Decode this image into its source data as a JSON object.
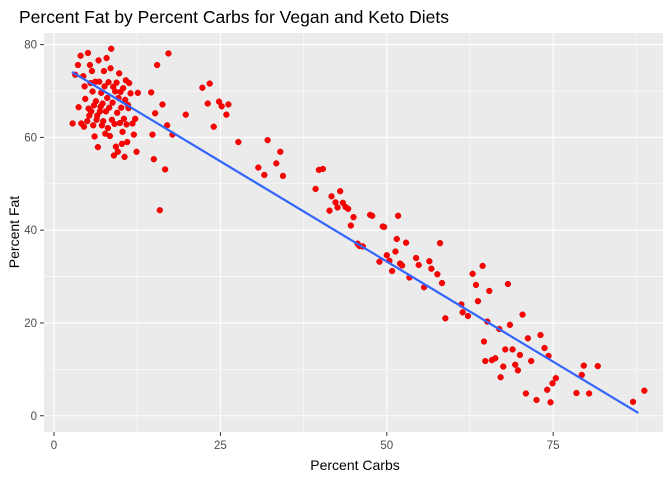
{
  "chart_data": {
    "type": "scatter",
    "title": "Percent Fat by Percent Carbs for Vegan and Keto Diets",
    "xlabel": "Percent Carbs",
    "ylabel": "Percent Fat",
    "xlim": [
      -1.5,
      91.5
    ],
    "ylim": [
      -3.5,
      82.5
    ],
    "xticks": [
      0,
      25,
      50,
      75
    ],
    "yticks": [
      0,
      20,
      40,
      60,
      80
    ],
    "grid": true,
    "points": [
      [
        2.8,
        63.0
      ],
      [
        3.2,
        73.5
      ],
      [
        3.6,
        75.6
      ],
      [
        3.7,
        66.5
      ],
      [
        4.0,
        77.6
      ],
      [
        4.1,
        63.0
      ],
      [
        4.4,
        73.2
      ],
      [
        4.5,
        62.3
      ],
      [
        4.6,
        71.0
      ],
      [
        4.7,
        68.3
      ],
      [
        5.0,
        63.5
      ],
      [
        5.1,
        78.2
      ],
      [
        5.2,
        66.2
      ],
      [
        5.3,
        64.7
      ],
      [
        5.4,
        75.6
      ],
      [
        5.5,
        71.7
      ],
      [
        5.6,
        65.6
      ],
      [
        5.7,
        74.3
      ],
      [
        5.8,
        69.9
      ],
      [
        5.9,
        62.6
      ],
      [
        6.0,
        66.9
      ],
      [
        6.1,
        60.2
      ],
      [
        6.2,
        72.0
      ],
      [
        6.3,
        67.8
      ],
      [
        6.4,
        63.8
      ],
      [
        6.5,
        64.7
      ],
      [
        6.6,
        57.9
      ],
      [
        6.7,
        76.6
      ],
      [
        6.8,
        72.0
      ],
      [
        6.9,
        65.6
      ],
      [
        7.0,
        66.6
      ],
      [
        7.1,
        69.6
      ],
      [
        7.2,
        62.6
      ],
      [
        7.3,
        67.3
      ],
      [
        7.4,
        63.5
      ],
      [
        7.5,
        74.3
      ],
      [
        7.6,
        71.0
      ],
      [
        7.7,
        60.8
      ],
      [
        7.8,
        65.6
      ],
      [
        7.9,
        77.1
      ],
      [
        8.0,
        68.5
      ],
      [
        8.1,
        62.0
      ],
      [
        8.2,
        71.9
      ],
      [
        8.3,
        66.4
      ],
      [
        8.4,
        60.3
      ],
      [
        8.5,
        74.9
      ],
      [
        8.6,
        79.1
      ],
      [
        8.7,
        63.8
      ],
      [
        8.8,
        67.5
      ],
      [
        8.9,
        70.9
      ],
      [
        9.0,
        56.1
      ],
      [
        9.1,
        62.9
      ],
      [
        9.2,
        69.9
      ],
      [
        9.3,
        58.0
      ],
      [
        9.4,
        71.8
      ],
      [
        9.5,
        65.3
      ],
      [
        9.6,
        56.9
      ],
      [
        9.7,
        68.5
      ],
      [
        9.8,
        73.8
      ],
      [
        9.9,
        63.1
      ],
      [
        10.0,
        69.8
      ],
      [
        10.1,
        66.4
      ],
      [
        10.2,
        58.6
      ],
      [
        10.3,
        61.2
      ],
      [
        10.4,
        70.6
      ],
      [
        10.5,
        64.0
      ],
      [
        10.6,
        55.8
      ],
      [
        10.7,
        68.1
      ],
      [
        10.8,
        72.3
      ],
      [
        10.9,
        62.8
      ],
      [
        11.0,
        59.0
      ],
      [
        11.1,
        67.0
      ],
      [
        11.2,
        66.3
      ],
      [
        11.3,
        71.7
      ],
      [
        11.5,
        69.5
      ],
      [
        11.8,
        63.0
      ],
      [
        12.0,
        60.6
      ],
      [
        12.2,
        64.0
      ],
      [
        12.4,
        56.9
      ],
      [
        12.6,
        69.6
      ],
      [
        14.6,
        69.7
      ],
      [
        14.8,
        60.6
      ],
      [
        15.0,
        55.3
      ],
      [
        15.2,
        65.2
      ],
      [
        15.5,
        75.6
      ],
      [
        15.9,
        44.3
      ],
      [
        16.3,
        67.1
      ],
      [
        16.7,
        53.1
      ],
      [
        17.0,
        62.6
      ],
      [
        17.2,
        78.1
      ],
      [
        17.8,
        60.6
      ],
      [
        19.8,
        64.9
      ],
      [
        22.3,
        70.7
      ],
      [
        23.1,
        67.3
      ],
      [
        23.4,
        71.6
      ],
      [
        24.0,
        62.3
      ],
      [
        24.8,
        67.7
      ],
      [
        25.2,
        66.7
      ],
      [
        25.9,
        64.9
      ],
      [
        26.2,
        67.1
      ],
      [
        27.7,
        59.0
      ],
      [
        30.7,
        53.5
      ],
      [
        31.6,
        51.9
      ],
      [
        32.1,
        59.4
      ],
      [
        33.4,
        54.4
      ],
      [
        34.0,
        56.9
      ],
      [
        34.4,
        51.7
      ],
      [
        39.3,
        48.9
      ],
      [
        39.8,
        53.0
      ],
      [
        40.4,
        53.2
      ],
      [
        41.4,
        44.2
      ],
      [
        41.7,
        47.3
      ],
      [
        42.3,
        46.0
      ],
      [
        42.6,
        44.9
      ],
      [
        43.0,
        48.4
      ],
      [
        43.4,
        45.9
      ],
      [
        43.8,
        45.0
      ],
      [
        44.2,
        44.6
      ],
      [
        44.6,
        41.0
      ],
      [
        45.0,
        42.8
      ],
      [
        45.6,
        37.1
      ],
      [
        45.9,
        36.6
      ],
      [
        46.4,
        36.5
      ],
      [
        47.5,
        43.3
      ],
      [
        47.8,
        43.1
      ],
      [
        48.9,
        33.2
      ],
      [
        49.4,
        40.8
      ],
      [
        49.6,
        40.7
      ],
      [
        50.0,
        34.6
      ],
      [
        50.4,
        33.4
      ],
      [
        50.8,
        31.2
      ],
      [
        51.3,
        35.4
      ],
      [
        51.5,
        38.1
      ],
      [
        51.7,
        43.1
      ],
      [
        52.0,
        32.8
      ],
      [
        52.3,
        32.4
      ],
      [
        52.9,
        37.3
      ],
      [
        53.4,
        29.8
      ],
      [
        54.4,
        34.0
      ],
      [
        54.8,
        32.5
      ],
      [
        55.6,
        27.7
      ],
      [
        56.4,
        33.3
      ],
      [
        56.7,
        31.7
      ],
      [
        57.6,
        30.5
      ],
      [
        58.0,
        37.2
      ],
      [
        58.3,
        28.6
      ],
      [
        58.8,
        21.0
      ],
      [
        61.2,
        24.0
      ],
      [
        61.4,
        22.3
      ],
      [
        62.2,
        21.5
      ],
      [
        62.9,
        30.6
      ],
      [
        63.4,
        28.2
      ],
      [
        63.7,
        24.7
      ],
      [
        64.4,
        32.3
      ],
      [
        64.6,
        16.0
      ],
      [
        64.8,
        11.8
      ],
      [
        65.1,
        20.3
      ],
      [
        65.4,
        26.9
      ],
      [
        65.8,
        12.0
      ],
      [
        66.3,
        12.4
      ],
      [
        66.9,
        18.7
      ],
      [
        67.1,
        8.3
      ],
      [
        67.5,
        10.6
      ],
      [
        67.8,
        14.3
      ],
      [
        68.2,
        28.4
      ],
      [
        68.5,
        19.6
      ],
      [
        68.9,
        14.3
      ],
      [
        69.3,
        11.0
      ],
      [
        69.7,
        9.8
      ],
      [
        70.0,
        13.1
      ],
      [
        70.4,
        21.8
      ],
      [
        70.9,
        4.8
      ],
      [
        71.2,
        16.7
      ],
      [
        71.7,
        11.8
      ],
      [
        72.5,
        3.4
      ],
      [
        73.1,
        17.4
      ],
      [
        73.7,
        14.6
      ],
      [
        74.1,
        5.6
      ],
      [
        74.3,
        12.9
      ],
      [
        74.6,
        2.9
      ],
      [
        74.9,
        7.0
      ],
      [
        75.4,
        8.1
      ],
      [
        78.5,
        4.9
      ],
      [
        79.3,
        8.8
      ],
      [
        79.6,
        10.8
      ],
      [
        80.4,
        4.8
      ],
      [
        81.7,
        10.7
      ],
      [
        87.0,
        3.0
      ],
      [
        88.7,
        5.4
      ]
    ],
    "trendline": {
      "x1": 2.7,
      "y1": 74.1,
      "x2": 87.8,
      "y2": 0.6
    }
  }
}
